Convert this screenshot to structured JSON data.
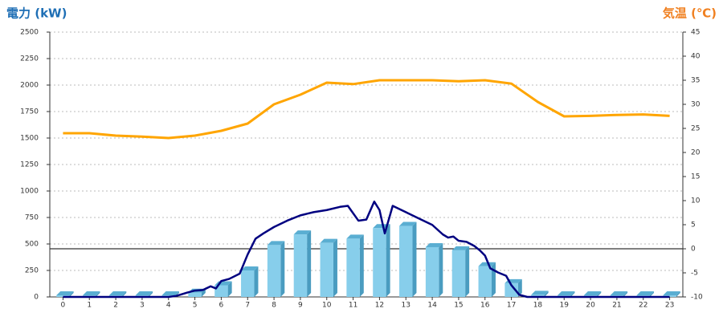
{
  "chart_data": {
    "type": "bar-line",
    "title_left": "電力 (kW)",
    "title_right": "気温 (℃)",
    "categories": [
      "0",
      "1",
      "2",
      "3",
      "4",
      "5",
      "6",
      "7",
      "8",
      "9",
      "10",
      "11",
      "12",
      "13",
      "14",
      "15",
      "16",
      "17",
      "18",
      "19",
      "20",
      "21",
      "22",
      "23"
    ],
    "ylim": [
      0,
      2500
    ],
    "yticks": [
      0,
      250,
      500,
      750,
      1000,
      1250,
      1500,
      1750,
      2000,
      2250,
      2500
    ],
    "y2lim": [
      -10,
      45
    ],
    "y2ticks": [
      -10,
      -5,
      0,
      5,
      10,
      15,
      20,
      25,
      30,
      35,
      40,
      45
    ],
    "grid": true,
    "series": [
      {
        "type": "bar",
        "color": "#87ceeb",
        "values": [
          15,
          15,
          15,
          15,
          15,
          40,
          110,
          250,
          490,
          590,
          510,
          550,
          650,
          670,
          470,
          440,
          290,
          130,
          20,
          15,
          15,
          15,
          15,
          15
        ]
      },
      {
        "type": "line",
        "color": "#000080",
        "x": [
          0,
          4,
          4.3,
          4.7,
          5,
          5.3,
          5.6,
          5.8,
          6,
          6.3,
          6.7,
          7,
          7.3,
          7.6,
          8,
          8.5,
          9,
          9.5,
          10,
          10.5,
          10.8,
          11.2,
          11.5,
          11.8,
          12,
          12.2,
          12.5,
          13,
          13.5,
          14,
          14.4,
          14.6,
          14.8,
          15,
          15.3,
          15.6,
          15.8,
          16,
          16.2,
          16.5,
          16.8,
          17,
          17.3,
          17.6,
          18,
          23
        ],
        "values": [
          0,
          0,
          10,
          40,
          60,
          65,
          100,
          80,
          150,
          170,
          220,
          400,
          550,
          600,
          660,
          720,
          770,
          800,
          820,
          850,
          860,
          720,
          730,
          900,
          820,
          600,
          860,
          800,
          740,
          680,
          590,
          560,
          570,
          530,
          520,
          480,
          440,
          390,
          270,
          230,
          200,
          110,
          20,
          0,
          0,
          0
        ]
      },
      {
        "type": "line",
        "axis": "y2",
        "color": "#ffa500",
        "values": [
          24,
          24,
          23.5,
          23.3,
          23,
          23.5,
          24.5,
          26,
          30,
          32,
          34.5,
          34.2,
          35,
          35,
          35,
          34.8,
          35,
          34.3,
          30.5,
          27.5,
          27.6,
          27.8,
          27.9,
          27.6
        ]
      }
    ]
  }
}
